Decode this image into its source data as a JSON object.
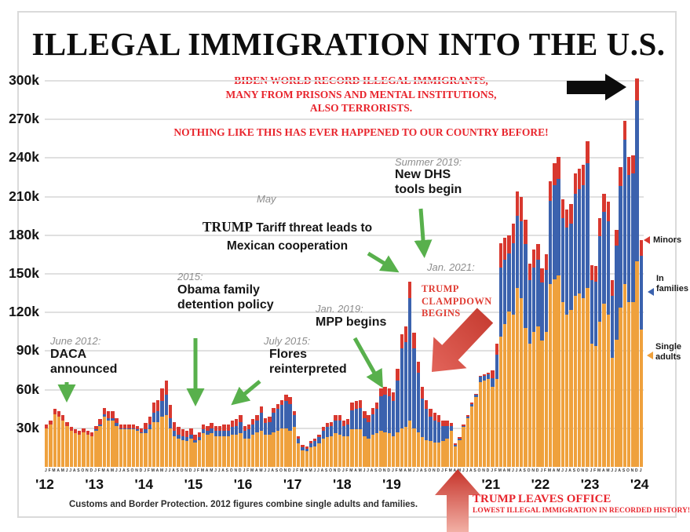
{
  "title": "ILLEGAL IMMIGRATION INTO THE U.S.",
  "claims": {
    "block1": "BIDEN WORLD RECORD ILLEGAL IMMIGRANTS,\nMANY FROM PRISONS AND MENTAL INSTITUTIONS,\nALSO TERRORISTS.",
    "block2": "NOTHING LIKE THIS HAS EVER HAPPENED TO OUR COUNTRY BEFORE!"
  },
  "annotations": {
    "daca": {
      "date": "June 2012:",
      "text": "DACA\nannounced"
    },
    "obama": {
      "date": "2015:",
      "text": "Obama family\ndetention policy"
    },
    "flores": {
      "date": "July 2015:",
      "text": "Flores\nreinterpreted"
    },
    "tariff": {
      "date": "May",
      "trump": "TRUMP",
      "rest": " Tariff threat leads to",
      "line2": "Mexican cooperation"
    },
    "mpp": {
      "date": "Jan. 2019:",
      "text": "MPP begins"
    },
    "dhs": {
      "date": "Summer 2019:",
      "text": "New DHS\ntools begin"
    },
    "jan2021": "Jan. 2021:",
    "clampdown": "TRUMP\nCLAMPDOWN\nBEGINS",
    "trump_leaves": {
      "title": "TRUMP LEAVES OFFICE",
      "sub": "LOWEST ILLEGAL IMMIGRATION IN RECORDED HISTORY!"
    }
  },
  "legend": {
    "minors": {
      "label": "Minors",
      "color": "#d8382f"
    },
    "families": {
      "label": "In\nfamilies",
      "color": "#3b62ae"
    },
    "single": {
      "label": "Single\nadults",
      "color": "#efa13d"
    }
  },
  "footer": "Customs and Border Protection. 2012 figures combine single adults and families.",
  "colors": {
    "single_adults": "#efa13d",
    "in_families": "#3b62ae",
    "minors": "#d8382f",
    "green_arrow": "#58b04c",
    "red_accent": "#e8252d",
    "black_arrow": "#0c0c0c"
  },
  "chart_data": {
    "type": "bar",
    "subtype": "stacked-monthly",
    "title": "ILLEGAL IMMIGRATION INTO THE U.S.",
    "unit": "apprehensions per month (thousands)",
    "xlabel": "",
    "ylabel": "",
    "ylim": [
      0,
      300000
    ],
    "grid": "horizontal",
    "legend_position": "right",
    "y_ticks": [
      "30k",
      "60k",
      "90k",
      "120k",
      "150k",
      "180k",
      "210k",
      "240k",
      "270k",
      "300k"
    ],
    "series": [
      {
        "name": "Single adults",
        "color": "#efa13d"
      },
      {
        "name": "In families",
        "color": "#3b62ae"
      },
      {
        "name": "Minors",
        "color": "#d8382f"
      }
    ],
    "years": [
      {
        "label": "'12",
        "months": "JFMAMJJASOND",
        "single_adults": [
          30,
          33,
          41,
          39,
          36,
          32,
          28,
          26,
          25,
          27,
          25,
          24
        ],
        "in_families": [
          0,
          0,
          0,
          0,
          0,
          0,
          0,
          0,
          0,
          0,
          0,
          0
        ],
        "minors": [
          3,
          3,
          4,
          4,
          4,
          3,
          3,
          3,
          3,
          3,
          3,
          3
        ]
      },
      {
        "label": "'13",
        "months": "JFMAMJJASOND",
        "single_adults": [
          28,
          32,
          39,
          36,
          36,
          32,
          29,
          29,
          29,
          29,
          28,
          26
        ],
        "in_families": [
          1,
          1,
          2,
          2,
          2,
          2,
          1,
          1,
          1,
          1,
          1,
          1
        ],
        "minors": [
          3,
          4,
          5,
          5,
          5,
          4,
          3,
          3,
          3,
          3,
          3,
          3
        ]
      },
      {
        "label": "'14",
        "months": "JFMAMJJASOND",
        "single_adults": [
          26,
          29,
          35,
          35,
          39,
          40,
          30,
          24,
          22,
          21,
          20,
          22
        ],
        "in_families": [
          3,
          4,
          7,
          8,
          12,
          16,
          8,
          4,
          3,
          3,
          3,
          3
        ],
        "minors": [
          5,
          6,
          8,
          9,
          10,
          11,
          10,
          7,
          6,
          5,
          5,
          5
        ]
      },
      {
        "label": "'15",
        "months": "JFMAMJJASOND",
        "single_adults": [
          19,
          21,
          26,
          25,
          26,
          24,
          24,
          24,
          24,
          25,
          25,
          26
        ],
        "in_families": [
          2,
          2,
          3,
          3,
          4,
          4,
          4,
          4,
          4,
          6,
          7,
          9
        ],
        "minors": [
          4,
          4,
          4,
          4,
          4,
          4,
          4,
          5,
          5,
          5,
          5,
          5
        ]
      },
      {
        "label": "'16",
        "months": "JFMAMJJASOND",
        "single_adults": [
          22,
          22,
          25,
          27,
          28,
          25,
          25,
          27,
          28,
          30,
          30,
          28
        ],
        "in_families": [
          6,
          7,
          8,
          9,
          14,
          9,
          10,
          15,
          17,
          18,
          21,
          21
        ],
        "minors": [
          4,
          4,
          4,
          4,
          5,
          4,
          4,
          4,
          4,
          4,
          5,
          5
        ]
      },
      {
        "label": "'17",
        "months": "JFMAMJJASOND",
        "single_adults": [
          31,
          18,
          13,
          12,
          15,
          16,
          18,
          22,
          23,
          24,
          26,
          25
        ],
        "in_families": [
          9,
          4,
          2,
          2,
          3,
          4,
          5,
          6,
          8,
          8,
          10,
          11
        ],
        "minors": [
          3,
          2,
          2,
          2,
          2,
          2,
          2,
          3,
          3,
          3,
          4,
          4
        ]
      },
      {
        "label": "'18",
        "months": "JFMAMJJASOND",
        "single_adults": [
          24,
          24,
          29,
          29,
          29,
          24,
          22,
          25,
          26,
          28,
          27,
          26
        ],
        "in_families": [
          8,
          9,
          15,
          16,
          17,
          14,
          13,
          16,
          19,
          27,
          29,
          29
        ],
        "minors": [
          4,
          4,
          6,
          6,
          6,
          5,
          5,
          5,
          5,
          6,
          6,
          6
        ]
      },
      {
        "label": "'19",
        "months": "JFMAMJJASOND",
        "single_adults": [
          24,
          27,
          30,
          31,
          36,
          30,
          27,
          23,
          21,
          20,
          19,
          19
        ],
        "in_families": [
          27,
          40,
          62,
          66,
          95,
          62,
          46,
          30,
          24,
          19,
          17,
          16
        ],
        "minors": [
          7,
          9,
          11,
          12,
          13,
          12,
          9,
          9,
          7,
          6,
          6,
          5
        ]
      },
      {
        "label": "",
        "months": "JFMAMJJASOND",
        "single_adults": [
          20,
          22,
          28,
          16,
          21,
          31,
          38,
          47,
          54,
          66,
          67,
          68
        ],
        "in_families": [
          12,
          10,
          4,
          1,
          1,
          1,
          1,
          2,
          2,
          4,
          4,
          4
        ],
        "minors": [
          4,
          4,
          2,
          1,
          1,
          1,
          1,
          1,
          1,
          1,
          1,
          1
        ]
      },
      {
        "label": "'21",
        "months": "JFMAMJJASOND",
        "single_adults": [
          62,
          68,
          101,
          111,
          121,
          118,
          139,
          131,
          108,
          96,
          105,
          109
        ],
        "in_families": [
          7,
          19,
          54,
          50,
          45,
          56,
          56,
          60,
          65,
          49,
          50,
          52
        ],
        "minors": [
          6,
          9,
          19,
          17,
          14,
          15,
          19,
          19,
          19,
          13,
          14,
          12
        ]
      },
      {
        "label": "'22",
        "months": "JFMAMJJASOND",
        "single_adults": [
          98,
          105,
          142,
          146,
          149,
          128,
          118,
          122,
          133,
          135,
          131,
          139
        ],
        "in_families": [
          45,
          48,
          65,
          73,
          75,
          65,
          68,
          67,
          79,
          81,
          88,
          97
        ],
        "minors": [
          11,
          12,
          15,
          17,
          17,
          15,
          14,
          15,
          16,
          16,
          16,
          17
        ]
      },
      {
        "label": "'23",
        "months": "JFMAMJJASOND",
        "single_adults": [
          96,
          94,
          113,
          127,
          118,
          85,
          99,
          124,
          142,
          128,
          128,
          160
        ],
        "in_families": [
          49,
          50,
          66,
          71,
          73,
          48,
          73,
          94,
          112,
          99,
          100,
          125
        ],
        "minors": [
          12,
          12,
          14,
          14,
          15,
          12,
          12,
          15,
          15,
          14,
          14,
          17
        ]
      },
      {
        "label": "'24",
        "months": "J",
        "single_adults": [
          107
        ],
        "in_families": [
          57
        ],
        "minors": [
          12
        ]
      }
    ]
  }
}
